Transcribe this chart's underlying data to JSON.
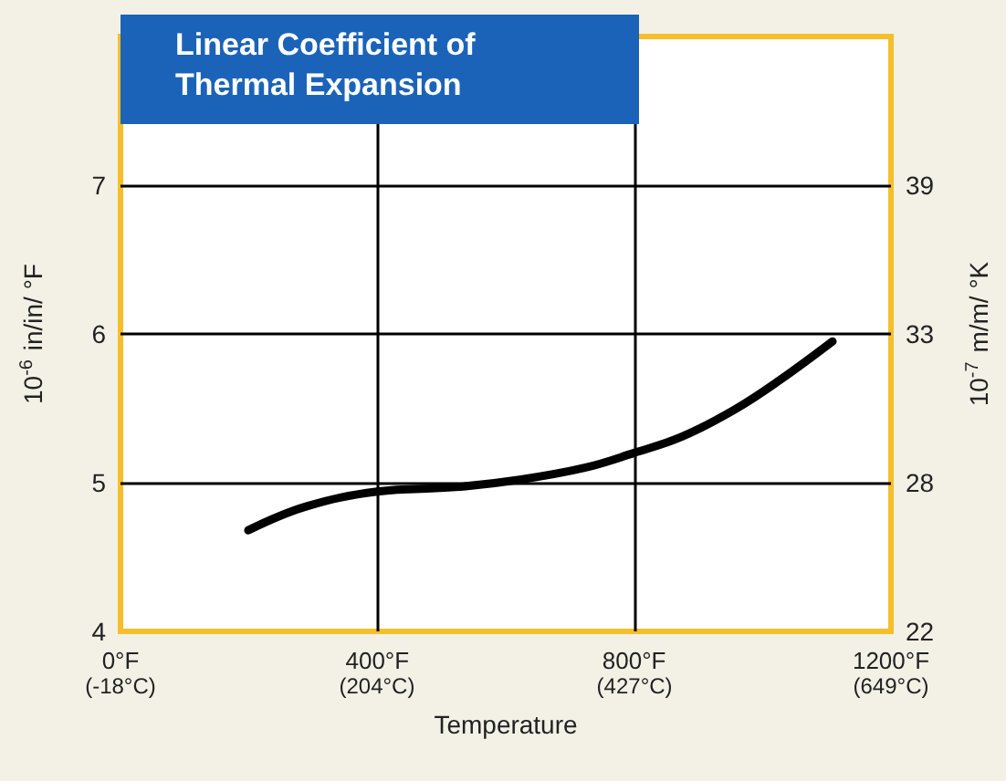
{
  "chart_data": {
    "type": "line",
    "title": "Linear Coefficient of\nThermal Expansion",
    "xlabel": "Temperature",
    "ylabel": "10$^{-6}$ in/in/ °F",
    "y2label": "10$^{-7}$ m/m/ °K",
    "x": [
      199,
      289,
      400,
      522,
      622,
      723,
      800,
      875,
      956,
      1027,
      1109
    ],
    "series": [
      {
        "color": "#000000",
        "values": [
          4.68,
          4.84,
          4.94,
          4.97,
          5.02,
          5.1,
          5.2,
          5.31,
          5.49,
          5.69,
          5.95
        ]
      }
    ],
    "xlim": [
      0,
      1200
    ],
    "xticks": [
      {
        "value": 0,
        "label": "0°F"
      },
      {
        "value": 400,
        "label": "400°F"
      },
      {
        "value": 800,
        "label": "800°F"
      },
      {
        "value": 1200,
        "label": "1200°F"
      }
    ],
    "x2lim": [
      -18,
      649
    ],
    "x2ticks": [
      {
        "value": -18,
        "label": "(-18°C)"
      },
      {
        "value": 204,
        "label": "(204°C)"
      },
      {
        "value": 427,
        "label": "(427°C)"
      },
      {
        "value": 649,
        "label": "(649°C)"
      }
    ],
    "ylim": [
      4,
      8
    ],
    "yticks": [
      4,
      5,
      6,
      7
    ],
    "y2lim": [
      22,
      44.67
    ],
    "y2ticks": [
      {
        "value": 22,
        "label": "22"
      },
      {
        "value": 27.67,
        "label": "28"
      },
      {
        "value": 33.33,
        "label": "33"
      },
      {
        "value": 39,
        "label": "39"
      }
    ],
    "grid": true,
    "marker": "none",
    "line_style": "solid"
  }
}
